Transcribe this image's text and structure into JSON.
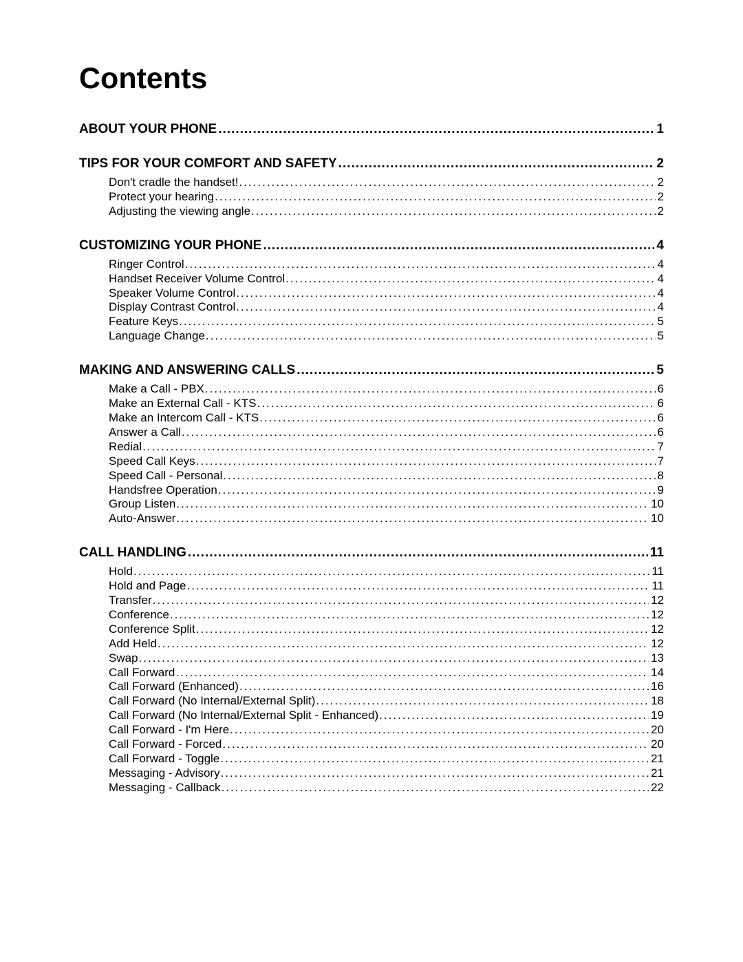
{
  "title": "Contents",
  "sections": [
    {
      "heading": "ABOUT YOUR PHONE",
      "page": "1",
      "items": []
    },
    {
      "heading": "TIPS FOR YOUR COMFORT AND SAFETY",
      "page": "2",
      "items": [
        {
          "label": "Don't cradle the handset!",
          "page": "2"
        },
        {
          "label": "Protect your hearing",
          "page": "2"
        },
        {
          "label": "Adjusting the viewing angle",
          "page": "2"
        }
      ]
    },
    {
      "heading": "CUSTOMIZING YOUR PHONE",
      "page": "4",
      "items": [
        {
          "label": "Ringer Control",
          "page": "4"
        },
        {
          "label": "Handset Receiver Volume Control",
          "page": "4"
        },
        {
          "label": "Speaker Volume Control",
          "page": "4"
        },
        {
          "label": "Display Contrast Control",
          "page": "4"
        },
        {
          "label": "Feature Keys",
          "page": "5"
        },
        {
          "label": "Language Change",
          "page": "5"
        }
      ]
    },
    {
      "heading": "MAKING AND ANSWERING CALLS",
      "page": "5",
      "items": [
        {
          "label": "Make a Call - PBX",
          "page": "6"
        },
        {
          "label": "Make an External Call - KTS",
          "page": "6"
        },
        {
          "label": "Make an Intercom Call - KTS",
          "page": "6"
        },
        {
          "label": "Answer a Call",
          "page": "6"
        },
        {
          "label": "Redial",
          "page": "7"
        },
        {
          "label": "Speed Call Keys",
          "page": "7"
        },
        {
          "label": "Speed Call - Personal",
          "page": "8"
        },
        {
          "label": "Handsfree Operation",
          "page": "9"
        },
        {
          "label": "Group Listen",
          "page": "10"
        },
        {
          "label": "Auto-Answer",
          "page": "10"
        }
      ]
    },
    {
      "heading": "CALL HANDLING",
      "page": "11",
      "items": [
        {
          "label": "Hold",
          "page": "11"
        },
        {
          "label": "Hold and Page",
          "page": "11"
        },
        {
          "label": "Transfer",
          "page": "12"
        },
        {
          "label": "Conference",
          "page": "12"
        },
        {
          "label": "Conference Split",
          "page": "12"
        },
        {
          "label": "Add Held",
          "page": "12"
        },
        {
          "label": "Swap",
          "page": "13"
        },
        {
          "label": "Call Forward",
          "page": "14"
        },
        {
          "label": "Call Forward (Enhanced)",
          "page": "16"
        },
        {
          "label": "Call Forward (No Internal/External Split)",
          "page": "18"
        },
        {
          "label": "Call Forward (No Internal/External Split - Enhanced)",
          "page": "19"
        },
        {
          "label": "Call Forward - I'm Here",
          "page": "20"
        },
        {
          "label": "Call Forward - Forced",
          "page": "20"
        },
        {
          "label": "Call Forward - Toggle",
          "page": "21"
        },
        {
          "label": "Messaging - Advisory",
          "page": "21"
        },
        {
          "label": "Messaging - Callback",
          "page": "22"
        }
      ]
    }
  ]
}
